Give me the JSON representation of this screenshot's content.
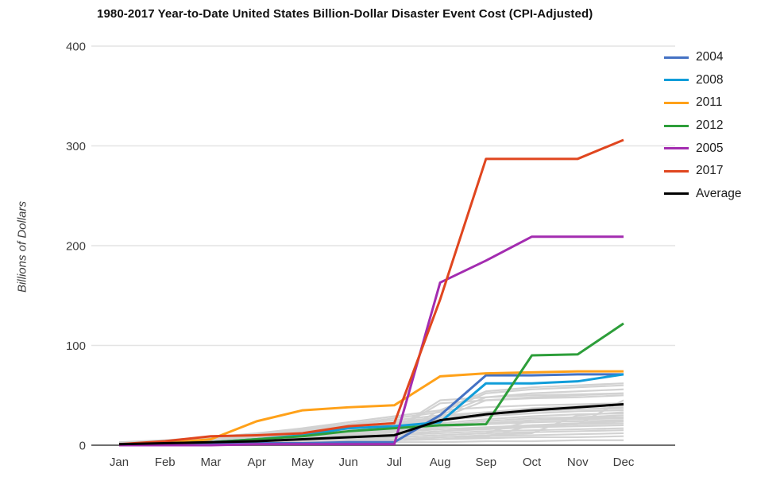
{
  "chart_data": {
    "type": "line",
    "title": "1980-2017 Year-to-Date United States Billion-Dollar Disaster Event Cost (CPI-Adjusted)",
    "ylabel": "Billions of Dollars",
    "xlabel": "",
    "x_categories": [
      "Jan",
      "Feb",
      "Mar",
      "Apr",
      "May",
      "Jun",
      "Jul",
      "Aug",
      "Sep",
      "Oct",
      "Nov",
      "Dec"
    ],
    "y_ticks": [
      0,
      100,
      200,
      300,
      400
    ],
    "ylim": [
      0,
      400
    ],
    "grid": "horizontal",
    "legend_position": "right",
    "colors": {
      "axis": "#6f6f6f",
      "gridline": "#e4e4e4",
      "tick_label": "#3d3d3d",
      "title_text": "#111111",
      "background_year_line": "#d2d2d2"
    },
    "series": [
      {
        "name": "2004",
        "color": "#4472c4",
        "values": [
          0,
          1,
          1,
          2,
          2,
          3,
          3,
          30,
          70,
          70,
          71,
          71
        ]
      },
      {
        "name": "2008",
        "color": "#119dd9",
        "values": [
          0,
          1,
          3,
          6,
          10,
          17,
          19,
          23,
          62,
          62,
          64,
          71
        ]
      },
      {
        "name": "2011",
        "color": "#ffa119",
        "values": [
          1,
          2,
          6,
          24,
          35,
          38,
          40,
          69,
          72,
          73,
          74,
          74
        ]
      },
      {
        "name": "2012",
        "color": "#2d9e3a",
        "values": [
          1,
          2,
          3,
          6,
          9,
          14,
          17,
          20,
          21,
          90,
          91,
          122
        ]
      },
      {
        "name": "2005",
        "color": "#a32cb0",
        "values": [
          0,
          0,
          0,
          1,
          1,
          1,
          1,
          163,
          185,
          209,
          209,
          209
        ]
      },
      {
        "name": "2017",
        "color": "#e0461f",
        "values": [
          1,
          4,
          9,
          10,
          12,
          19,
          22,
          146,
          287,
          287,
          287,
          306
        ]
      },
      {
        "name": "Average",
        "color": "#000000",
        "values": [
          1,
          2,
          3,
          4,
          6,
          8,
          10,
          25,
          31,
          35,
          38,
          41
        ]
      }
    ],
    "background_years_note": "unlabeled gray lines for remaining years 1980-2016 (values approximate)",
    "background_series": [
      [
        0,
        0,
        1,
        1,
        2,
        2,
        3,
        3,
        4,
        4,
        5,
        5
      ],
      [
        0,
        1,
        1,
        2,
        3,
        4,
        5,
        6,
        7,
        8,
        8,
        9
      ],
      [
        1,
        1,
        2,
        3,
        4,
        5,
        6,
        8,
        9,
        10,
        11,
        12
      ],
      [
        0,
        1,
        2,
        3,
        5,
        7,
        8,
        10,
        12,
        13,
        14,
        15
      ],
      [
        1,
        2,
        3,
        4,
        6,
        8,
        10,
        12,
        14,
        15,
        16,
        17
      ],
      [
        0,
        1,
        2,
        4,
        6,
        9,
        11,
        14,
        16,
        18,
        19,
        20
      ],
      [
        1,
        2,
        4,
        6,
        8,
        10,
        13,
        16,
        18,
        20,
        21,
        22
      ],
      [
        2,
        3,
        5,
        7,
        10,
        13,
        15,
        18,
        21,
        23,
        24,
        25
      ],
      [
        1,
        2,
        3,
        5,
        8,
        11,
        14,
        18,
        22,
        25,
        26,
        27
      ],
      [
        2,
        4,
        6,
        8,
        11,
        14,
        17,
        20,
        24,
        27,
        28,
        30
      ],
      [
        1,
        2,
        4,
        7,
        10,
        14,
        18,
        22,
        26,
        29,
        31,
        32
      ],
      [
        2,
        3,
        5,
        8,
        12,
        16,
        20,
        25,
        29,
        32,
        34,
        35
      ],
      [
        1,
        3,
        5,
        8,
        12,
        17,
        21,
        26,
        31,
        34,
        36,
        38
      ],
      [
        2,
        4,
        7,
        10,
        14,
        18,
        23,
        28,
        33,
        37,
        39,
        40
      ],
      [
        0,
        1,
        2,
        3,
        5,
        7,
        9,
        30,
        33,
        35,
        36,
        37
      ],
      [
        1,
        2,
        3,
        4,
        6,
        8,
        10,
        35,
        38,
        40,
        41,
        42
      ],
      [
        2,
        3,
        5,
        7,
        9,
        12,
        15,
        42,
        45,
        47,
        48,
        50
      ],
      [
        1,
        2,
        4,
        6,
        9,
        12,
        16,
        45,
        48,
        50,
        51,
        52
      ],
      [
        2,
        4,
        6,
        9,
        13,
        17,
        22,
        27,
        45,
        48,
        50,
        52
      ],
      [
        1,
        3,
        6,
        10,
        15,
        20,
        25,
        30,
        48,
        52,
        54,
        56
      ],
      [
        2,
        4,
        7,
        11,
        16,
        21,
        27,
        33,
        52,
        56,
        58,
        60
      ],
      [
        3,
        5,
        8,
        12,
        17,
        23,
        29,
        35,
        54,
        58,
        60,
        62
      ],
      [
        0,
        0,
        1,
        2,
        3,
        4,
        5,
        6,
        8,
        20,
        22,
        24
      ],
      [
        1,
        1,
        2,
        3,
        4,
        6,
        8,
        10,
        12,
        25,
        27,
        28
      ],
      [
        0,
        1,
        1,
        2,
        3,
        4,
        6,
        8,
        10,
        12,
        30,
        33
      ],
      [
        1,
        2,
        3,
        5,
        7,
        9,
        11,
        14,
        17,
        19,
        21,
        45
      ]
    ]
  }
}
